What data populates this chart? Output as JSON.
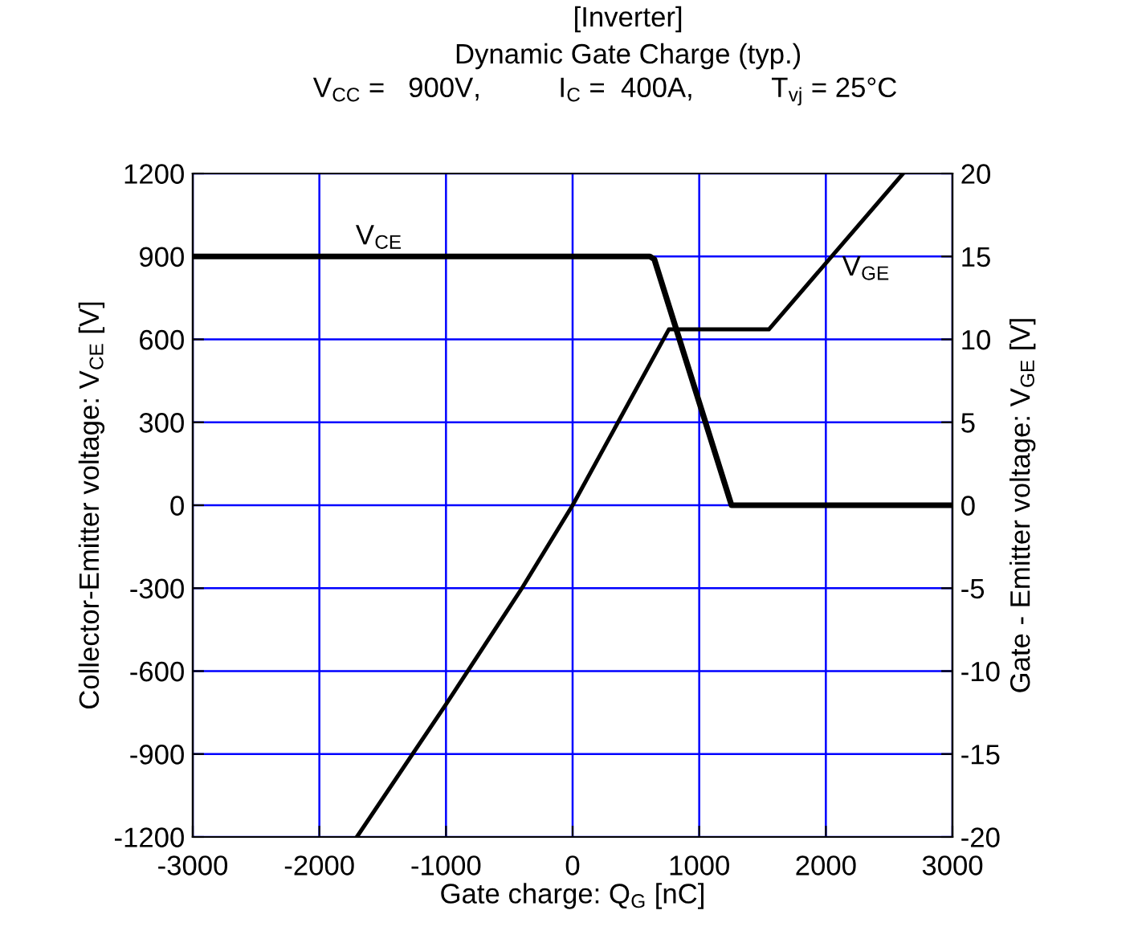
{
  "chart_data": {
    "type": "line",
    "title": "[Inverter]",
    "subtitle": "Dynamic Gate Charge (typ.)",
    "xlabel": "Gate charge: Q$_{G}$ [nC]",
    "ylabel": "Collector-Emitter voltage: V$_{CE}$ [V]",
    "y2label": "Gate - Emitter voltage: V$_{GE}$ [V]",
    "series": [
      {
        "name": "V$_{CE}$",
        "color": "#000000",
        "x": [
          -3000,
          610,
          645,
          1255,
          3000
        ],
        "values": [
          900,
          900,
          890,
          0,
          0
        ]
      },
      {
        "name": "V$_{GE}$",
        "color": "#000000",
        "axis": "y2",
        "x": [
          -1704,
          -1000,
          -400,
          0,
          760,
          1550,
          2610
        ],
        "values": [
          -20,
          -12,
          -5,
          0,
          10.6,
          10.6,
          20
        ]
      }
    ],
    "annotations": [
      "V$_{CC}$ =   900V,          I$_{C}$ =  400A,          T$_{vj}$ = 25°C"
    ],
    "xlim": [
      -3000,
      3000
    ],
    "xticks": [
      -3000,
      -2000,
      -1000,
      0,
      1000,
      2000,
      3000
    ],
    "ylim": [
      -1200,
      1200
    ],
    "yticks": [
      -1200,
      -900,
      -600,
      -300,
      0,
      300,
      600,
      900,
      1200
    ],
    "y2lim": [
      -20,
      20
    ],
    "y2ticks": [
      -20,
      -15,
      -10,
      -5,
      0,
      5,
      10,
      15,
      20
    ],
    "grid": true,
    "legend": false,
    "marker": "none",
    "line_style": "solid"
  }
}
